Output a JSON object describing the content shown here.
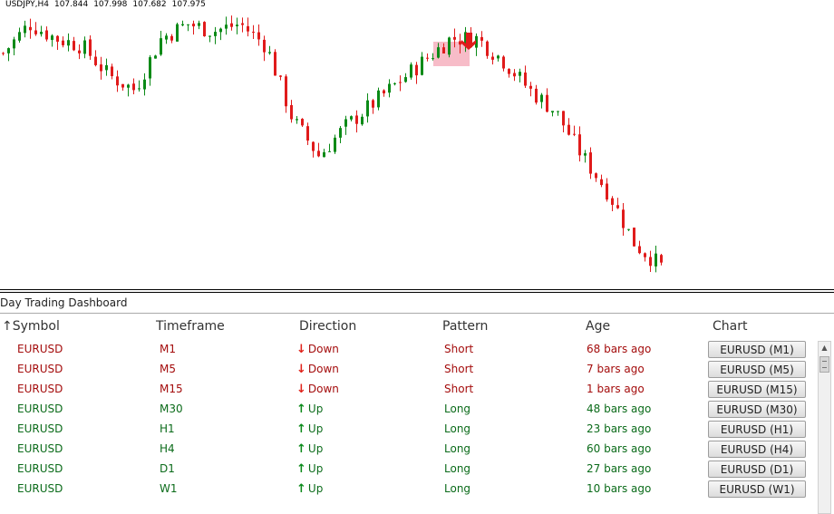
{
  "chart": {
    "symbol_tf": "USDJPY,H4",
    "ohlc": [
      "107.844",
      "107.998",
      "107.682",
      "107.975"
    ],
    "colors": {
      "bull": "#0b8a17",
      "bear": "#e01b1b",
      "highlight": "#f4a6b5",
      "signal_arrow": "#e01b1b"
    }
  },
  "chart_data": {
    "type": "candlestick",
    "title": "USDJPY,H4",
    "trend_path": [
      108.4,
      108.8,
      108.6,
      108.5,
      108.1,
      107.9,
      108.6,
      108.8,
      108.7,
      108.8,
      108.5,
      107.5,
      107.0,
      107.4,
      107.7,
      108.0,
      108.3,
      108.6,
      108.6,
      108.3,
      107.9,
      107.6,
      107.0,
      106.5,
      105.8,
      105.5
    ],
    "signal": "down-arrow"
  },
  "dashboard": {
    "title": "Day Trading Dashboard",
    "headers": {
      "symbol": "Symbol",
      "sort_icon": "↑",
      "timeframe": "Timeframe",
      "direction": "Direction",
      "pattern": "Pattern",
      "age": "Age",
      "chart": "Chart"
    },
    "rows": [
      {
        "symbol": "EURUSD",
        "timeframe": "M1",
        "direction": "Down",
        "pattern": "Short",
        "age": "68 bars ago",
        "button": "EURUSD (M1)",
        "dir": "dn"
      },
      {
        "symbol": "EURUSD",
        "timeframe": "M5",
        "direction": "Down",
        "pattern": "Short",
        "age": "7 bars ago",
        "button": "EURUSD (M5)",
        "dir": "dn"
      },
      {
        "symbol": "EURUSD",
        "timeframe": "M15",
        "direction": "Down",
        "pattern": "Short",
        "age": "1 bars ago",
        "button": "EURUSD (M15)",
        "dir": "dn"
      },
      {
        "symbol": "EURUSD",
        "timeframe": "M30",
        "direction": "Up",
        "pattern": "Long",
        "age": "48 bars ago",
        "button": "EURUSD (M30)",
        "dir": "up"
      },
      {
        "symbol": "EURUSD",
        "timeframe": "H1",
        "direction": "Up",
        "pattern": "Long",
        "age": "23 bars ago",
        "button": "EURUSD (H1)",
        "dir": "up"
      },
      {
        "symbol": "EURUSD",
        "timeframe": "H4",
        "direction": "Up",
        "pattern": "Long",
        "age": "60 bars ago",
        "button": "EURUSD (H4)",
        "dir": "up"
      },
      {
        "symbol": "EURUSD",
        "timeframe": "D1",
        "direction": "Up",
        "pattern": "Long",
        "age": "27 bars ago",
        "button": "EURUSD (D1)",
        "dir": "up"
      },
      {
        "symbol": "EURUSD",
        "timeframe": "W1",
        "direction": "Up",
        "pattern": "Long",
        "age": "10 bars ago",
        "button": "EURUSD (W1)",
        "dir": "up"
      }
    ]
  }
}
